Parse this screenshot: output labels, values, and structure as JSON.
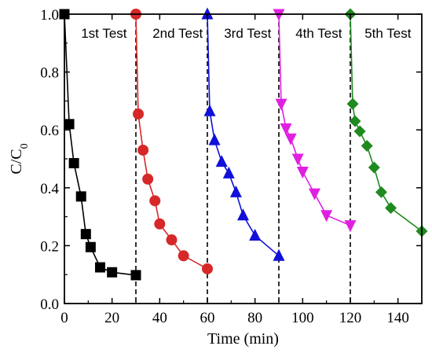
{
  "chart_data": {
    "type": "line",
    "xlabel": "Time (min)",
    "ylabel_main": "C/C",
    "ylabel_sub": "0",
    "xlim": [
      0,
      150
    ],
    "ylim": [
      0,
      1.0
    ],
    "xticks": [
      0,
      20,
      40,
      60,
      80,
      100,
      120,
      140
    ],
    "yticks": [
      0.0,
      0.2,
      0.4,
      0.6,
      0.8,
      1.0
    ],
    "xtick_labels": [
      "0",
      "20",
      "40",
      "60",
      "80",
      "100",
      "120",
      "140"
    ],
    "ytick_labels": [
      "0.0",
      "0.2",
      "0.4",
      "0.6",
      "0.8",
      "1.0"
    ],
    "grid": false,
    "dividers": [
      30,
      60,
      90,
      120
    ],
    "test_labels": [
      {
        "text": "1st Test",
        "x": 7,
        "y": 0.935
      },
      {
        "text": "2nd Test",
        "x": 37,
        "y": 0.935
      },
      {
        "text": "3rd Test",
        "x": 67,
        "y": 0.935
      },
      {
        "text": "4th Test",
        "x": 97,
        "y": 0.935
      },
      {
        "text": "5th Test",
        "x": 126,
        "y": 0.935
      }
    ],
    "series": [
      {
        "marker": "square",
        "color": "#000000",
        "x": [
          0,
          2,
          4,
          7,
          9,
          11,
          15,
          20,
          30
        ],
        "y": [
          1.0,
          0.62,
          0.485,
          0.37,
          0.24,
          0.195,
          0.125,
          0.108,
          0.098
        ]
      },
      {
        "marker": "circle",
        "color": "#d62828",
        "x": [
          30,
          31,
          33,
          35,
          38,
          40,
          45,
          50,
          60
        ],
        "y": [
          1.0,
          0.655,
          0.53,
          0.43,
          0.355,
          0.275,
          0.22,
          0.165,
          0.12
        ]
      },
      {
        "marker": "triangle-up",
        "color": "#1010d8",
        "x": [
          60,
          61,
          63,
          66,
          69,
          72,
          75,
          80,
          90
        ],
        "y": [
          1.0,
          0.665,
          0.565,
          0.49,
          0.45,
          0.385,
          0.305,
          0.235,
          0.165
        ]
      },
      {
        "marker": "triangle-down",
        "color": "#e020e0",
        "x": [
          90,
          91,
          93,
          95,
          98,
          100,
          105,
          110,
          120
        ],
        "y": [
          1.0,
          0.69,
          0.605,
          0.57,
          0.5,
          0.455,
          0.38,
          0.305,
          0.27
        ]
      },
      {
        "marker": "diamond",
        "color": "#1f8a1f",
        "x": [
          120,
          121,
          122,
          124,
          127,
          130,
          133,
          137,
          150
        ],
        "y": [
          1.0,
          0.69,
          0.63,
          0.595,
          0.545,
          0.47,
          0.385,
          0.33,
          0.25
        ]
      }
    ]
  }
}
